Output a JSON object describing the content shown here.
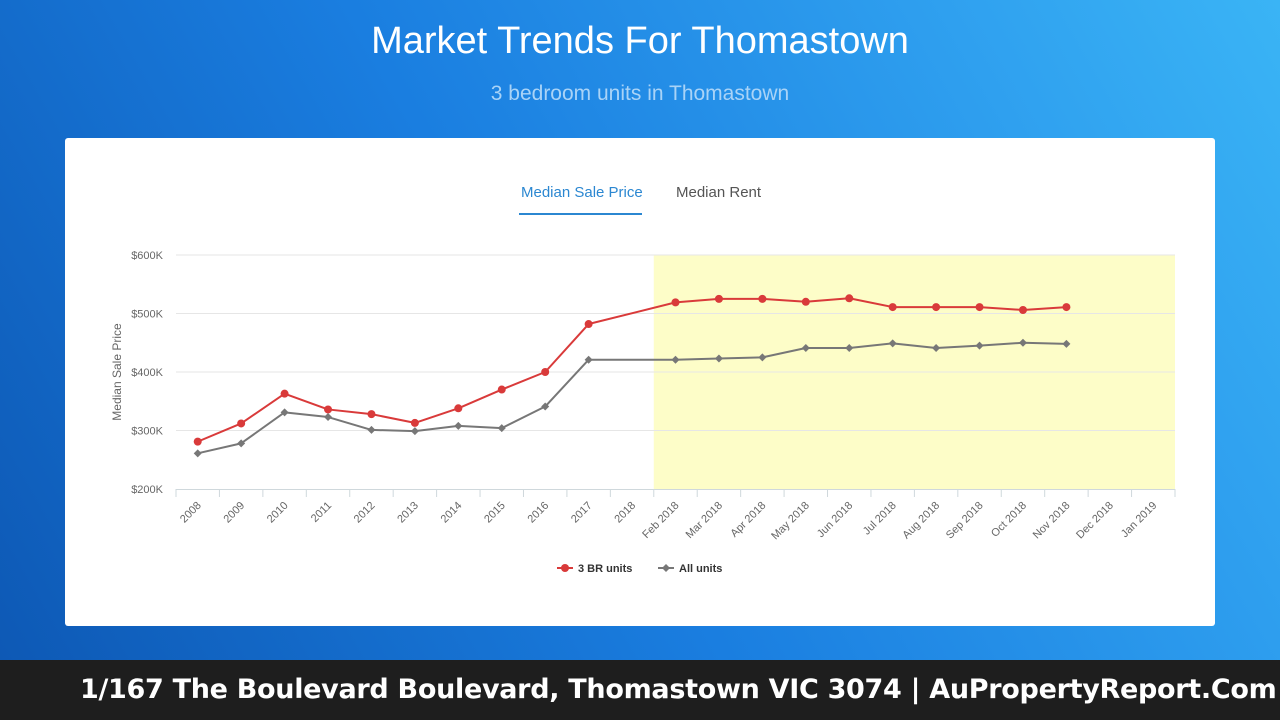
{
  "header": {
    "title": "Market Trends For Thomastown",
    "subtitle": "3 bedroom units in Thomastown"
  },
  "tabs": [
    {
      "label": "Median Sale Price",
      "active": true
    },
    {
      "label": "Median Rent",
      "active": false
    }
  ],
  "colors": {
    "series_3br": "#d93a3a",
    "series_all": "#777777",
    "highlight": "#fdfdc8",
    "tab_active": "#2b87d1"
  },
  "chart_data": {
    "type": "line",
    "title": "",
    "xlabel": "",
    "ylabel": "Median Sale Price",
    "ylim": [
      200000,
      600000
    ],
    "yticks": [
      {
        "value": 200000,
        "label": "$200K"
      },
      {
        "value": 300000,
        "label": "$300K"
      },
      {
        "value": 400000,
        "label": "$400K"
      },
      {
        "value": 500000,
        "label": "$500K"
      },
      {
        "value": 600000,
        "label": "$600K"
      }
    ],
    "categories": [
      "2008",
      "2009",
      "2010",
      "2011",
      "2012",
      "2013",
      "2014",
      "2015",
      "2016",
      "2017",
      "2018",
      "Feb 2018",
      "Mar 2018",
      "Apr 2018",
      "May 2018",
      "Jun 2018",
      "Jul 2018",
      "Aug 2018",
      "Sep 2018",
      "Oct 2018",
      "Nov 2018",
      "Dec 2018",
      "Jan 2019"
    ],
    "highlight_range": [
      "Feb 2018",
      "Jan 2019"
    ],
    "grid": true,
    "legend_position": "bottom",
    "series": [
      {
        "name": "3 BR units",
        "color": "#d93a3a",
        "marker": "circle",
        "values": [
          281000,
          312000,
          363000,
          336000,
          328000,
          313000,
          338000,
          370000,
          400000,
          482000,
          null,
          519000,
          525000,
          525000,
          520000,
          526000,
          511000,
          511000,
          511000,
          506000,
          511000,
          null,
          null
        ]
      },
      {
        "name": "All units",
        "color": "#777777",
        "marker": "diamond",
        "values": [
          261000,
          278000,
          331000,
          323000,
          301000,
          299000,
          308000,
          304000,
          341000,
          421000,
          null,
          421000,
          423000,
          425000,
          441000,
          441000,
          449000,
          441000,
          445000,
          450000,
          448000,
          null,
          null
        ]
      }
    ]
  },
  "footer": {
    "text": "1/167 The Boulevard Boulevard, Thomastown VIC 3074 | AuPropertyReport.Com"
  }
}
